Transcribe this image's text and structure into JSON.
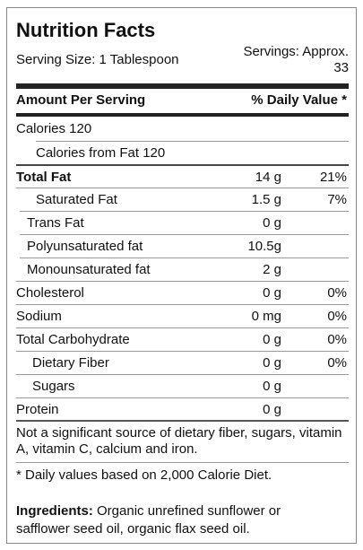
{
  "header": {
    "title": "Nutrition Facts",
    "serving_size": "Serving Size: 1 Tablespoon",
    "servings": "Servings: Approx. 33"
  },
  "table": {
    "columns": [
      "Amount Per Serving",
      "% Daily Value *"
    ],
    "rows": [
      [
        "Calories 120"
      ],
      [
        "Calories from Fat 120"
      ],
      [
        "Total Fat",
        "14 g",
        "21%"
      ],
      [
        "Saturated Fat",
        "1.5 g",
        "7%"
      ],
      [
        "Trans Fat",
        "0 g"
      ],
      [
        "Polyunsaturated fat",
        "10.5g"
      ],
      [
        "Monounsaturated fat",
        "2 g"
      ],
      [
        "Cholesterol",
        "0 g",
        "0%"
      ],
      [
        "Sodium",
        "0 mg",
        "0%"
      ],
      [
        "Total Carbohydrate",
        "0 g",
        "0%"
      ],
      [
        "Dietary Fiber",
        "0 g",
        "0%"
      ],
      [
        "Sugars",
        "0 g"
      ],
      [
        "Protein",
        "0 g"
      ]
    ]
  },
  "note": "Not a significant source of dietary fiber, sugars, vitamin A, vitamin C, calcium and iron.",
  "footnote": "* Daily values based on 2,000 Calorie Diet.",
  "ingredients": {
    "label": "Ingredients:",
    "text": "Organic unrefined sunflower or safflower seed oil, organic flax seed oil."
  }
}
